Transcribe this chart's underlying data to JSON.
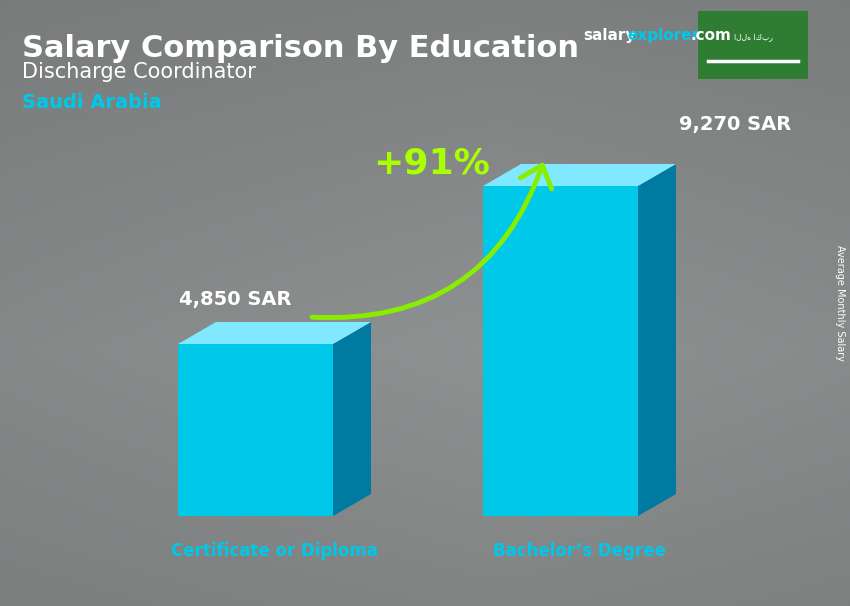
{
  "title_main": "Salary Comparison By Education",
  "subtitle": "Discharge Coordinator",
  "country": "Saudi Arabia",
  "categories": [
    "Certificate or Diploma",
    "Bachelor’s Degree"
  ],
  "values": [
    4850,
    9270
  ],
  "value_labels": [
    "4,850 SAR",
    "9,270 SAR"
  ],
  "pct_change": "+91%",
  "bar_face_color": "#00C8E8",
  "bar_side_color": "#007AA0",
  "bar_top_color": "#80E8FF",
  "bar_top_color2": "#50D0F0",
  "bg_color": "#7a7a7a",
  "title_color": "#ffffff",
  "subtitle_color": "#ffffff",
  "country_color": "#00C8E8",
  "category_color": "#00C8E8",
  "value_color": "#ffffff",
  "pct_color": "#aaff00",
  "arrow_color": "#88ee00",
  "ylabel": "Average Monthly Salary",
  "flag_bg": "#2e7d32",
  "explorer_color": "#00C8E8",
  "salary_white": "#ffffff",
  "com_white": "#ffffff"
}
